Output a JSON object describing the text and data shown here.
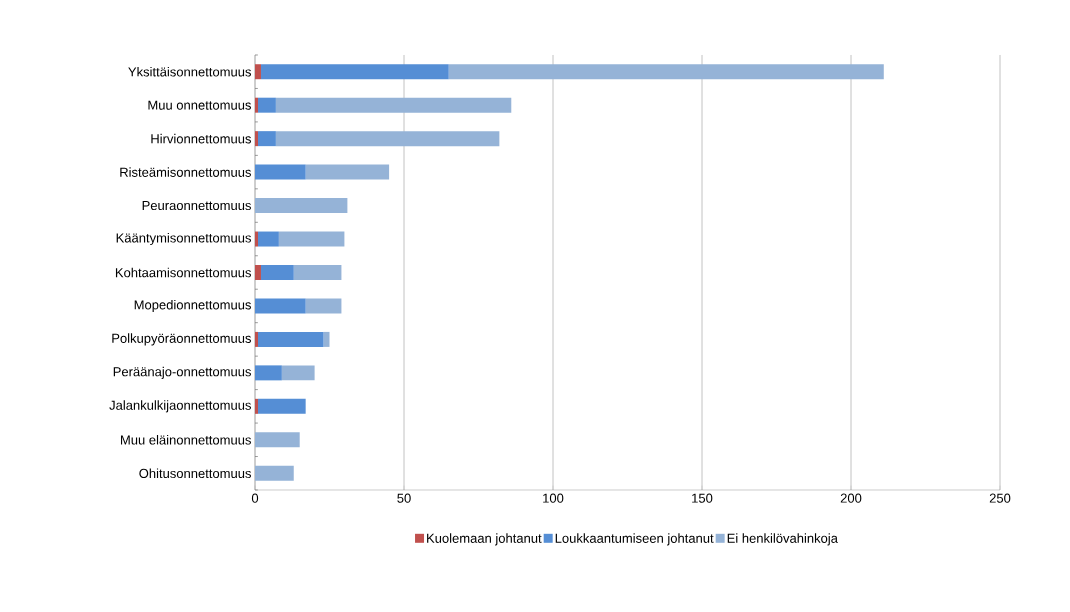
{
  "chart_data": {
    "type": "bar",
    "orientation": "horizontal",
    "stacked": true,
    "categories": [
      "Yksittäisonnettomuus",
      "Muu onnettomuus",
      "Hirvionnettomuus",
      "Risteämisonnettomuus",
      "Peuraonnettomuus",
      "Kääntymisonnettomuus",
      "Kohtaamisonnettomuus",
      "Mopedionnettomuus",
      "Polkupyöräonnettomuus",
      "Peräänajo-onnettomuus",
      "Jalankulkijaonnettomuus",
      "Muu eläinonnettomuus",
      "Ohitusonnettomuus"
    ],
    "series": [
      {
        "name": "Kuolemaan johtanut",
        "color": "#c0504d",
        "values": [
          2,
          1,
          1,
          0,
          0,
          1,
          2,
          0,
          1,
          0,
          1,
          0,
          0
        ]
      },
      {
        "name": "Loukkaantumiseen johtanut",
        "color": "#558ed5",
        "values": [
          63,
          6,
          6,
          17,
          0,
          7,
          11,
          17,
          22,
          9,
          16,
          0,
          0
        ]
      },
      {
        "name": "Ei henkilövahinkoja",
        "color": "#95b3d7",
        "values": [
          146,
          79,
          75,
          28,
          31,
          22,
          16,
          12,
          2,
          11,
          0,
          15,
          13
        ]
      }
    ],
    "xlim": [
      0,
      250
    ],
    "xticks": [
      0,
      50,
      100,
      150,
      200,
      250
    ],
    "grid": "x",
    "legend": "bottom"
  }
}
